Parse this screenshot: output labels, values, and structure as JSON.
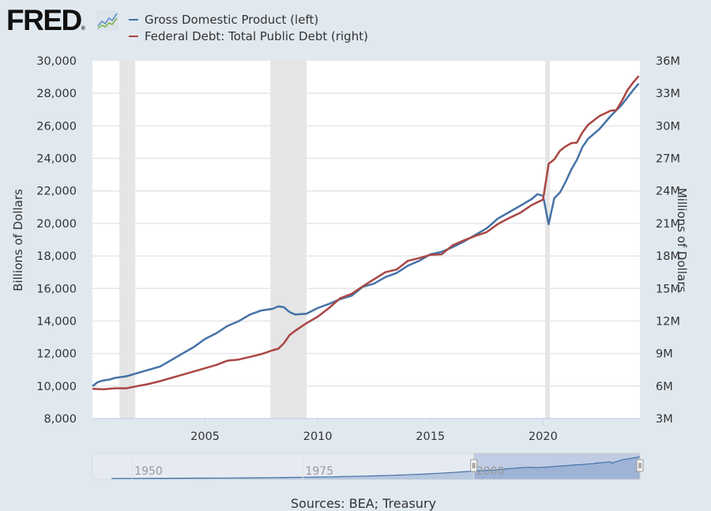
{
  "header": {
    "logo_text": "FRED",
    "logo_mark": "®",
    "logo_icon": "line-graph-icon"
  },
  "chart_data": {
    "type": "line",
    "title": "",
    "legend_position": "top-left",
    "xlabel": "",
    "ylabel": "Billions of Dollars",
    "ylabel_right": "Millions of Dollars",
    "xlim": [
      2000.0,
      2024.3
    ],
    "ylim": [
      8000,
      30000
    ],
    "ylim_right": [
      3000000,
      36000000
    ],
    "grid": true,
    "x_ticks": [
      2005,
      2010,
      2015,
      2020
    ],
    "x_tick_labels": [
      "2005",
      "2010",
      "2015",
      "2020"
    ],
    "y_ticks": [
      8000,
      10000,
      12000,
      14000,
      16000,
      18000,
      20000,
      22000,
      24000,
      26000,
      28000,
      30000
    ],
    "y_tick_labels": [
      "8,000",
      "10,000",
      "12,000",
      "14,000",
      "16,000",
      "18,000",
      "20,000",
      "22,000",
      "24,000",
      "26,000",
      "28,000",
      "30,000"
    ],
    "y_right_ticks": [
      3000000,
      6000000,
      9000000,
      12000000,
      15000000,
      18000000,
      21000000,
      24000000,
      27000000,
      30000000,
      33000000,
      36000000
    ],
    "y_right_tick_labels": [
      "3M",
      "6M",
      "9M",
      "12M",
      "15M",
      "18M",
      "21M",
      "24M",
      "27M",
      "30M",
      "33M",
      "36M"
    ],
    "recessions": [
      [
        2001.2,
        2001.9
      ],
      [
        2007.9,
        2009.5
      ],
      [
        2020.1,
        2020.3
      ]
    ],
    "series": [
      {
        "name": "Gross Domestic Product (left)",
        "axis": "left",
        "color": "#4572a7",
        "x": [
          2000.0,
          2000.25,
          2000.5,
          2000.75,
          2001.0,
          2001.5,
          2002.0,
          2002.5,
          2003.0,
          2003.5,
          2004.0,
          2004.5,
          2005.0,
          2005.5,
          2006.0,
          2006.5,
          2007.0,
          2007.5,
          2008.0,
          2008.25,
          2008.5,
          2008.75,
          2009.0,
          2009.5,
          2010.0,
          2010.5,
          2011.0,
          2011.5,
          2012.0,
          2012.5,
          2013.0,
          2013.5,
          2014.0,
          2014.5,
          2015.0,
          2015.5,
          2016.0,
          2016.5,
          2017.0,
          2017.5,
          2018.0,
          2018.5,
          2019.0,
          2019.5,
          2019.75,
          2020.0,
          2020.25,
          2020.5,
          2020.75,
          2021.0,
          2021.25,
          2021.5,
          2021.75,
          2022.0,
          2022.5,
          2023.0,
          2023.5,
          2024.0,
          2024.25
        ],
        "values": [
          10000,
          10250,
          10350,
          10400,
          10500,
          10600,
          10800,
          11000,
          11200,
          11600,
          12000,
          12400,
          12900,
          13250,
          13700,
          14000,
          14400,
          14650,
          14750,
          14900,
          14850,
          14550,
          14400,
          14450,
          14800,
          15050,
          15350,
          15550,
          16100,
          16300,
          16700,
          16950,
          17400,
          17700,
          18100,
          18250,
          18550,
          18900,
          19300,
          19700,
          20300,
          20700,
          21100,
          21500,
          21800,
          21700,
          19950,
          21550,
          21900,
          22550,
          23300,
          23900,
          24700,
          25200,
          25800,
          26600,
          27300,
          28200,
          28600
        ]
      },
      {
        "name": "Federal Debt: Total Public Debt (right)",
        "axis": "right",
        "color": "#aa4643",
        "x": [
          2000.0,
          2000.5,
          2001.0,
          2001.5,
          2002.0,
          2002.5,
          2003.0,
          2003.5,
          2004.0,
          2004.5,
          2005.0,
          2005.5,
          2006.0,
          2006.5,
          2007.0,
          2007.5,
          2008.0,
          2008.25,
          2008.5,
          2008.75,
          2009.0,
          2009.5,
          2010.0,
          2010.5,
          2011.0,
          2011.5,
          2012.0,
          2012.5,
          2013.0,
          2013.5,
          2014.0,
          2014.5,
          2015.0,
          2015.5,
          2016.0,
          2016.5,
          2017.0,
          2017.5,
          2018.0,
          2018.5,
          2019.0,
          2019.5,
          2019.75,
          2020.0,
          2020.25,
          2020.5,
          2020.75,
          2021.0,
          2021.25,
          2021.5,
          2021.75,
          2022.0,
          2022.5,
          2023.0,
          2023.25,
          2023.5,
          2023.75,
          2024.0,
          2024.25
        ],
        "values": [
          5750000,
          5700000,
          5800000,
          5800000,
          6000000,
          6200000,
          6450000,
          6750000,
          7050000,
          7350000,
          7650000,
          7950000,
          8350000,
          8450000,
          8700000,
          8950000,
          9300000,
          9450000,
          9950000,
          10700000,
          11100000,
          11800000,
          12400000,
          13200000,
          14100000,
          14500000,
          15200000,
          15850000,
          16500000,
          16750000,
          17550000,
          17800000,
          18100000,
          18150000,
          19000000,
          19450000,
          19850000,
          20200000,
          20950000,
          21500000,
          22000000,
          22700000,
          22950000,
          23200000,
          26500000,
          26900000,
          27700000,
          28100000,
          28400000,
          28450000,
          29400000,
          30100000,
          30900000,
          31400000,
          31450000,
          32300000,
          33300000,
          34000000,
          34600000
        ]
      }
    ],
    "navigator": {
      "tick_labels": [
        "1950",
        "1975",
        "2000"
      ],
      "range_start": 2000.0,
      "range_end": 2024.3
    },
    "source": "Sources: BEA; Treasury"
  }
}
